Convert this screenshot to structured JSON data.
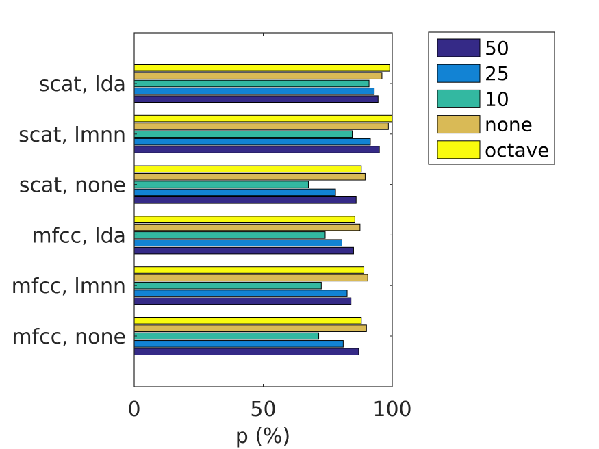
{
  "chart_data": {
    "type": "bar",
    "orientation": "horizontal",
    "title": "",
    "xlabel": "p (%)",
    "ylabel": "",
    "xlim": [
      0,
      100
    ],
    "xticks": [
      "0",
      "50",
      "100"
    ],
    "grid": false,
    "legend_position": "outside-top-right",
    "categories": [
      "scat, lda",
      "scat, lmnn",
      "scat, none",
      "mfcc, lda",
      "mfcc, lmnn",
      "mfcc, none"
    ],
    "series": [
      {
        "name": "50",
        "color": "#352a87",
        "values": [
          94.5,
          95,
          86,
          85,
          84,
          87
        ]
      },
      {
        "name": "25",
        "color": "#1283d4",
        "values": [
          93,
          91.5,
          78,
          80.5,
          82.5,
          81
        ]
      },
      {
        "name": "10",
        "color": "#33b8a1",
        "values": [
          91,
          84.5,
          67.5,
          74,
          72.5,
          71.5
        ]
      },
      {
        "name": "none",
        "color": "#d9ba56",
        "values": [
          96,
          98.5,
          89.5,
          87.5,
          90.5,
          90
        ]
      },
      {
        "name": "octave",
        "color": "#f9fb0e",
        "values": [
          99,
          100,
          88,
          85.5,
          89,
          88
        ]
      }
    ]
  }
}
